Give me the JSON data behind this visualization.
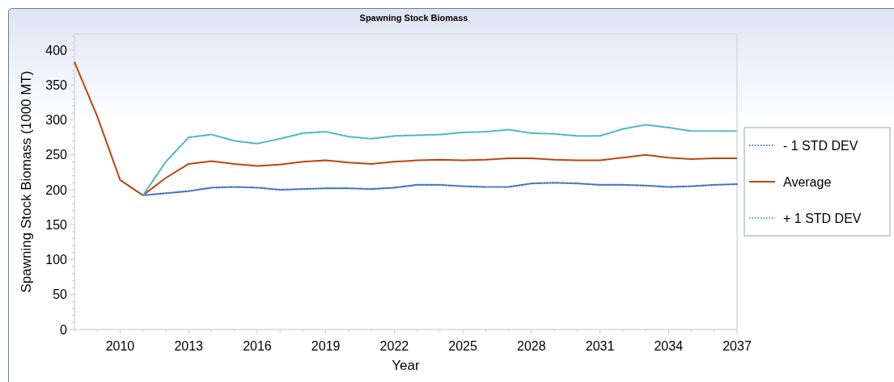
{
  "chart_data": {
    "type": "line",
    "title": "Spawning Stock Biomass",
    "xlabel": "Year",
    "ylabel": "Spawning Stock Biomass (1000 MT)",
    "x": [
      2008,
      2009,
      2010,
      2011,
      2012,
      2013,
      2014,
      2015,
      2016,
      2017,
      2018,
      2019,
      2020,
      2021,
      2022,
      2023,
      2024,
      2025,
      2026,
      2027,
      2028,
      2029,
      2030,
      2031,
      2032,
      2033,
      2034,
      2035,
      2036,
      2037
    ],
    "series": [
      {
        "name": "- 1 STD DEV",
        "color": "#4472c4",
        "line_style": "dotted",
        "values": [
          null,
          null,
          null,
          192,
          195,
          198,
          203,
          204,
          203,
          200,
          201,
          202,
          202,
          201,
          203,
          207,
          207,
          205,
          204,
          204,
          209,
          210,
          209,
          207,
          207,
          206,
          204,
          205,
          207,
          208
        ]
      },
      {
        "name": "Average",
        "color": "#c0440f",
        "line_style": "solid",
        "values": [
          383,
          305,
          214,
          192,
          217,
          237,
          241,
          237,
          234,
          236,
          240,
          242,
          239,
          237,
          240,
          242,
          243,
          242,
          243,
          245,
          245,
          243,
          242,
          242,
          246,
          250,
          246,
          244,
          245,
          245
        ]
      },
      {
        "name": "+ 1 STD DEV",
        "color": "#4bb8c8",
        "line_style": "dotted",
        "values": [
          null,
          null,
          null,
          192,
          240,
          275,
          279,
          270,
          266,
          273,
          281,
          283,
          276,
          273,
          277,
          278,
          279,
          282,
          283,
          286,
          281,
          280,
          277,
          277,
          287,
          293,
          289,
          284,
          284,
          284
        ]
      }
    ],
    "xlim": [
      2008,
      2037
    ],
    "xticks": [
      {
        "value": 2009,
        "label": null
      },
      2010,
      {
        "value": 2011,
        "label": null
      },
      {
        "value": 2012,
        "label": null
      },
      2013,
      {
        "value": 2014,
        "label": null
      },
      {
        "value": 2015,
        "label": null
      },
      2016,
      {
        "value": 2017,
        "label": null
      },
      {
        "value": 2018,
        "label": null
      },
      2019,
      {
        "value": 2020,
        "label": null
      },
      {
        "value": 2021,
        "label": null
      },
      2022,
      {
        "value": 2023,
        "label": null
      },
      {
        "value": 2024,
        "label": null
      },
      2025,
      {
        "value": 2026,
        "label": null
      },
      {
        "value": 2027,
        "label": null
      },
      2028,
      {
        "value": 2029,
        "label": null
      },
      {
        "value": 2030,
        "label": null
      },
      2031,
      {
        "value": 2032,
        "label": null
      },
      {
        "value": 2033,
        "label": null
      },
      2034,
      {
        "value": 2035,
        "label": null
      },
      {
        "value": 2036,
        "label": null
      },
      2037
    ],
    "ylim": [
      0,
      423
    ],
    "yticks": [
      0,
      {
        "value": 10,
        "label": null
      },
      {
        "value": 20,
        "label": null
      },
      {
        "value": 30,
        "label": null
      },
      {
        "value": 40,
        "label": null
      },
      50,
      {
        "value": 60,
        "label": null
      },
      {
        "value": 70,
        "label": null
      },
      {
        "value": 80,
        "label": null
      },
      {
        "value": 90,
        "label": null
      },
      100,
      {
        "value": 110,
        "label": null
      },
      {
        "value": 120,
        "label": null
      },
      {
        "value": 130,
        "label": null
      },
      {
        "value": 140,
        "label": null
      },
      150,
      {
        "value": 160,
        "label": null
      },
      {
        "value": 170,
        "label": null
      },
      {
        "value": 180,
        "label": null
      },
      {
        "value": 190,
        "label": null
      },
      200,
      {
        "value": 210,
        "label": null
      },
      {
        "value": 220,
        "label": null
      },
      {
        "value": 230,
        "label": null
      },
      {
        "value": 240,
        "label": null
      },
      250,
      {
        "value": 260,
        "label": null
      },
      {
        "value": 270,
        "label": null
      },
      {
        "value": 280,
        "label": null
      },
      {
        "value": 290,
        "label": null
      },
      300,
      {
        "value": 310,
        "label": null
      },
      {
        "value": 320,
        "label": null
      },
      {
        "value": 330,
        "label": null
      },
      {
        "value": 340,
        "label": null
      },
      350,
      {
        "value": 360,
        "label": null
      },
      {
        "value": 370,
        "label": null
      },
      {
        "value": 380,
        "label": null
      },
      {
        "value": 390,
        "label": null
      },
      400,
      {
        "value": 410,
        "label": null
      },
      {
        "value": 420,
        "label": null
      }
    ],
    "legend": "right",
    "grid": false,
    "marker": "none"
  }
}
